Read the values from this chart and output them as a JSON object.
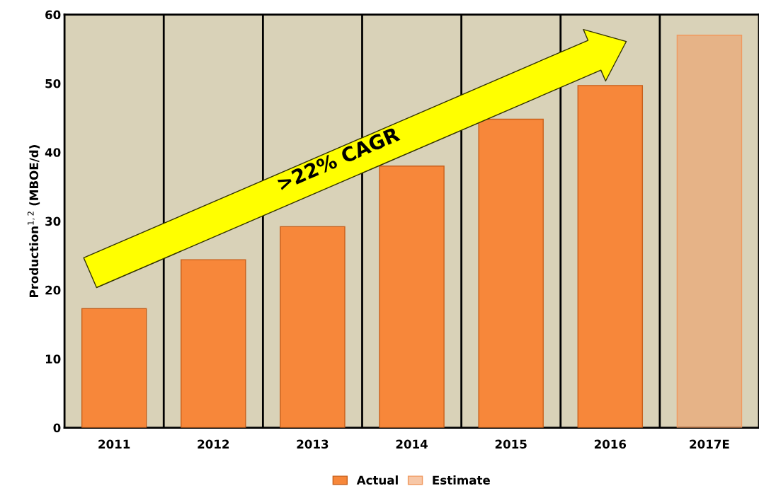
{
  "chart_data": {
    "type": "bar",
    "ylabel": "Production$^{1,2}$ (MBOE/d)",
    "categories": [
      "2011",
      "2012",
      "2013",
      "2014",
      "2015",
      "2016",
      "2017E"
    ],
    "series": [
      {
        "name": "Actual",
        "color": "#f7873a",
        "values": [
          17.3,
          24.4,
          29.2,
          38.0,
          44.8,
          49.7,
          null
        ]
      },
      {
        "name": "Estimate",
        "color": "#f0995f",
        "values": [
          null,
          null,
          null,
          null,
          null,
          null,
          57.0
        ]
      }
    ],
    "ylim": [
      0,
      60
    ],
    "yticks": [
      0,
      10,
      20,
      30,
      40,
      50,
      60
    ],
    "grid": "x",
    "legend": "bottom",
    "annotations": [
      ">22% CAGR"
    ]
  }
}
